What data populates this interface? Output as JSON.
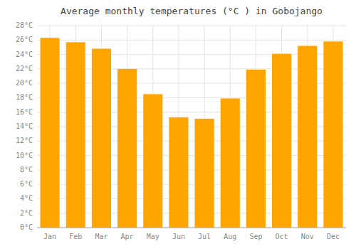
{
  "chart_data": {
    "type": "bar",
    "title": "Average monthly temperatures (°C ) in Gobojango",
    "categories": [
      "Jan",
      "Feb",
      "Mar",
      "Apr",
      "May",
      "Jun",
      "Jul",
      "Aug",
      "Sep",
      "Oct",
      "Nov",
      "Dec"
    ],
    "values": [
      26.3,
      25.7,
      24.8,
      22.0,
      18.5,
      15.3,
      15.1,
      17.9,
      21.9,
      24.1,
      25.2,
      25.8
    ],
    "color": "#FFA500",
    "ylim": [
      0,
      28
    ],
    "yticks": [
      {
        "value": 0,
        "label": "0°C"
      },
      {
        "value": 2,
        "label": "2°C"
      },
      {
        "value": 4,
        "label": "4°C"
      },
      {
        "value": 6,
        "label": "6°C"
      },
      {
        "value": 8,
        "label": "8°C"
      },
      {
        "value": 10,
        "label": "10°C"
      },
      {
        "value": 12,
        "label": "12°C"
      },
      {
        "value": 14,
        "label": "14°C"
      },
      {
        "value": 16,
        "label": "16°C"
      },
      {
        "value": 18,
        "label": "18°C"
      },
      {
        "value": 20,
        "label": "20°C"
      },
      {
        "value": 22,
        "label": "22°C"
      },
      {
        "value": 24,
        "label": "24°C"
      },
      {
        "value": 26,
        "label": "26°C"
      },
      {
        "value": 28,
        "label": "28°C"
      }
    ],
    "grid": true
  }
}
